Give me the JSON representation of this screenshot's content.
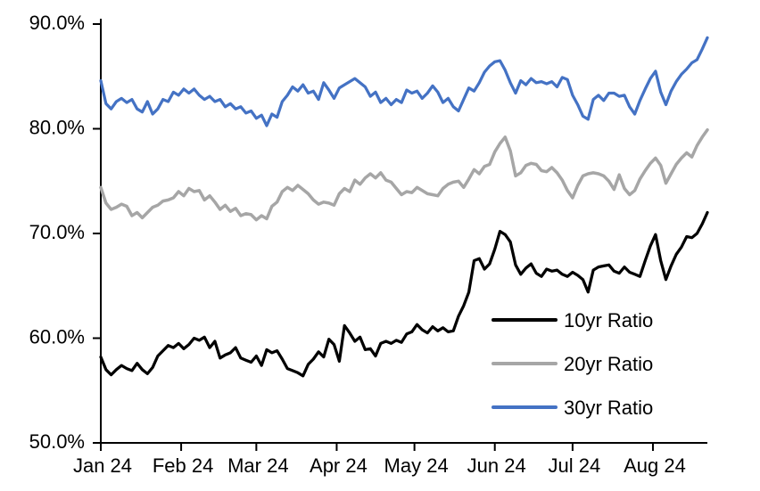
{
  "chart_data": {
    "type": "line",
    "title": "",
    "xlabel": "",
    "ylabel": "",
    "grid": false,
    "legend_position": "inside-lower-right",
    "axis_color": "#000000",
    "background_color": "#ffffff",
    "ylim": [
      50,
      90
    ],
    "y_ticks": [
      {
        "value": 50,
        "label": "50.0%"
      },
      {
        "value": 60,
        "label": "60.0%"
      },
      {
        "value": 70,
        "label": "70.0%"
      },
      {
        "value": 80,
        "label": "80.0%"
      },
      {
        "value": 90,
        "label": "90.0%"
      }
    ],
    "x_ticks": [
      {
        "day": 0,
        "label": "Jan 24"
      },
      {
        "day": 31,
        "label": "Feb 24"
      },
      {
        "day": 60,
        "label": "Mar 24"
      },
      {
        "day": 91,
        "label": "Apr 24"
      },
      {
        "day": 121,
        "label": "May 24"
      },
      {
        "day": 152,
        "label": "Jun 24"
      },
      {
        "day": 182,
        "label": "Jul 24"
      },
      {
        "day": 213,
        "label": "Aug 24"
      }
    ],
    "x_total_days": 234,
    "sample_interval_days": 2,
    "series": [
      {
        "name": "10yr Ratio",
        "color": "#000000",
        "line_width": 3.25,
        "values": [
          58.2,
          57.0,
          56.5,
          57.0,
          57.4,
          57.1,
          56.9,
          57.6,
          57.0,
          56.6,
          57.2,
          58.3,
          58.8,
          59.3,
          59.1,
          59.5,
          59.0,
          59.4,
          60.0,
          59.8,
          60.1,
          59.1,
          59.7,
          58.1,
          58.4,
          58.6,
          59.1,
          58.1,
          57.9,
          57.7,
          58.3,
          57.4,
          58.9,
          58.6,
          58.8,
          58.0,
          57.1,
          56.9,
          56.7,
          56.4,
          57.5,
          58.0,
          58.7,
          58.2,
          59.9,
          59.4,
          57.8,
          61.2,
          60.5,
          59.7,
          60.1,
          58.9,
          59.0,
          58.3,
          59.5,
          59.7,
          59.5,
          59.8,
          59.6,
          60.4,
          60.6,
          61.3,
          60.8,
          60.5,
          61.1,
          60.7,
          61.0,
          60.6,
          60.7,
          62.1,
          63.1,
          64.4,
          67.4,
          67.6,
          66.6,
          67.1,
          68.5,
          70.2,
          69.9,
          69.2,
          67.0,
          66.1,
          66.7,
          67.1,
          66.2,
          65.9,
          66.6,
          66.4,
          66.5,
          66.1,
          65.9,
          66.3,
          66.0,
          65.6,
          64.4,
          66.5,
          66.8,
          66.9,
          67.0,
          66.4,
          66.2,
          66.8,
          66.3,
          66.1,
          65.9,
          67.4,
          68.8,
          69.9,
          67.4,
          65.6,
          66.9,
          68.0,
          68.7,
          69.7,
          69.6,
          70.0,
          70.9,
          72.0
        ]
      },
      {
        "name": "20yr Ratio",
        "color": "#A6A6A6",
        "line_width": 3.5,
        "values": [
          74.4,
          72.9,
          72.3,
          72.5,
          72.8,
          72.6,
          71.7,
          72.0,
          71.5,
          72.0,
          72.5,
          72.7,
          73.1,
          73.2,
          73.4,
          74.0,
          73.6,
          74.3,
          74.0,
          74.1,
          73.2,
          73.6,
          73.0,
          72.3,
          72.7,
          72.1,
          72.4,
          71.7,
          71.9,
          71.8,
          71.3,
          71.7,
          71.4,
          72.6,
          73.0,
          74.0,
          74.4,
          74.1,
          74.6,
          74.2,
          73.8,
          73.2,
          72.8,
          73.0,
          72.9,
          72.7,
          73.8,
          74.3,
          74.0,
          75.1,
          74.7,
          75.3,
          75.7,
          75.3,
          75.8,
          75.1,
          74.9,
          74.3,
          73.7,
          74.0,
          73.9,
          74.4,
          74.1,
          73.8,
          73.7,
          73.6,
          74.3,
          74.7,
          74.9,
          75.0,
          74.4,
          75.2,
          76.1,
          75.7,
          76.4,
          76.6,
          77.8,
          78.6,
          79.2,
          77.9,
          75.5,
          75.8,
          76.5,
          76.7,
          76.6,
          76.0,
          75.9,
          76.3,
          75.8,
          75.1,
          74.1,
          73.4,
          74.6,
          75.5,
          75.7,
          75.8,
          75.7,
          75.5,
          75.0,
          74.2,
          75.6,
          74.3,
          73.7,
          74.1,
          75.2,
          76.0,
          76.7,
          77.2,
          76.5,
          74.8,
          75.7,
          76.6,
          77.2,
          77.7,
          77.3,
          78.4,
          79.2,
          79.9
        ]
      },
      {
        "name": "30yr Ratio",
        "color": "#4472C4",
        "line_width": 3.25,
        "values": [
          84.6,
          82.4,
          81.9,
          82.6,
          82.9,
          82.5,
          82.8,
          81.9,
          81.6,
          82.6,
          81.4,
          81.9,
          82.8,
          82.6,
          83.5,
          83.2,
          83.8,
          83.4,
          83.8,
          83.2,
          82.8,
          83.1,
          82.6,
          82.8,
          82.1,
          82.4,
          81.9,
          82.1,
          81.5,
          81.7,
          81.0,
          81.3,
          80.3,
          81.4,
          81.1,
          82.6,
          83.2,
          84.0,
          83.6,
          84.2,
          83.4,
          83.6,
          82.8,
          84.4,
          83.7,
          82.9,
          83.9,
          84.2,
          84.5,
          84.8,
          84.4,
          84.0,
          83.1,
          83.5,
          82.5,
          82.9,
          82.3,
          82.8,
          82.5,
          83.7,
          83.4,
          83.6,
          82.9,
          83.4,
          84.1,
          83.5,
          82.5,
          82.9,
          82.1,
          81.7,
          82.8,
          83.9,
          83.6,
          84.4,
          85.4,
          86.0,
          86.4,
          86.5,
          85.6,
          84.4,
          83.4,
          84.6,
          84.2,
          84.8,
          84.4,
          84.5,
          84.3,
          84.5,
          84.0,
          84.9,
          84.7,
          83.2,
          82.3,
          81.2,
          80.9,
          82.8,
          83.2,
          82.7,
          83.4,
          83.4,
          83.1,
          83.2,
          82.1,
          81.4,
          82.7,
          83.8,
          84.8,
          85.5,
          83.5,
          82.3,
          83.6,
          84.5,
          85.2,
          85.7,
          86.3,
          86.6,
          87.6,
          88.7
        ]
      }
    ]
  }
}
